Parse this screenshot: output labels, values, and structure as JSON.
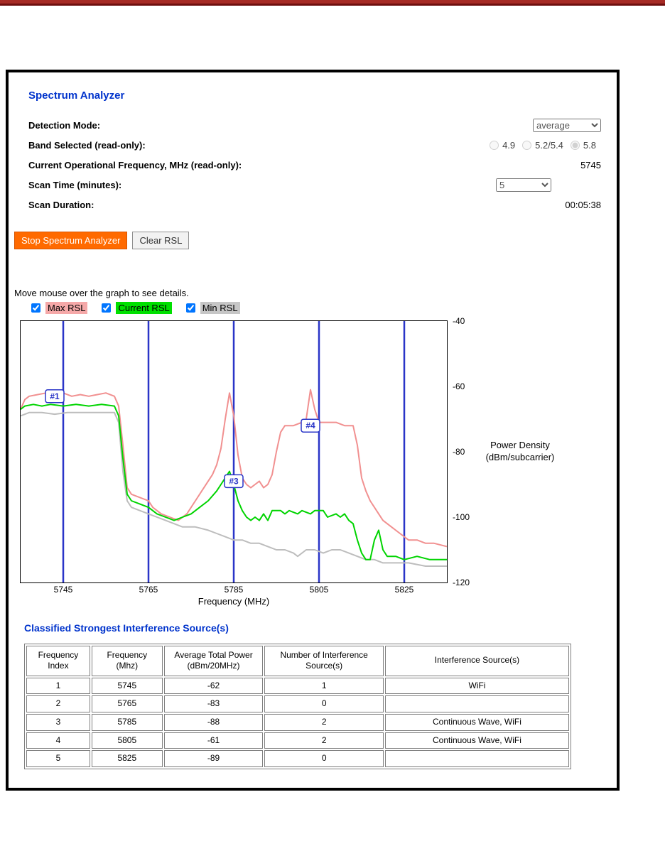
{
  "colors": {
    "top_bar": "#a62b25",
    "heading_blue": "#0033cc",
    "stop_button_orange": "#ff6a00"
  },
  "panel": {
    "title": "Spectrum Analyzer",
    "detection_mode": {
      "label": "Detection Mode:",
      "value": "average"
    },
    "band": {
      "label": "Band Selected (read-only):",
      "options": [
        {
          "label": "4.9",
          "selected": false
        },
        {
          "label": "5.2/5.4",
          "selected": false
        },
        {
          "label": "5.8",
          "selected": true
        }
      ]
    },
    "frequency": {
      "label": "Current Operational Frequency, MHz (read-only):",
      "value": "5745"
    },
    "scan_time": {
      "label": "Scan Time (minutes):",
      "value": "5"
    },
    "scan_duration": {
      "label": "Scan Duration:",
      "value": "00:05:38"
    },
    "buttons": {
      "stop": "Stop Spectrum Analyzer",
      "clear": "Clear RSL"
    },
    "hint": "Move mouse over the graph to see details.",
    "legend": [
      {
        "label": "Max RSL",
        "checked": true,
        "color": "#f5a8a8"
      },
      {
        "label": "Current RSL",
        "checked": true,
        "color": "#00e000"
      },
      {
        "label": "Min RSL",
        "checked": true,
        "color": "#c6c6c6"
      }
    ]
  },
  "chart_data": {
    "type": "line",
    "title": "",
    "xlabel": "Frequency (MHz)",
    "ylabel": "Power Density (dBm/subcarrier)",
    "xlim": [
      5735,
      5835
    ],
    "ylim": [
      -120,
      -40
    ],
    "x_ticks": [
      5745,
      5765,
      5785,
      5805,
      5825
    ],
    "y_ticks": [
      -40,
      -60,
      -80,
      -100,
      -120
    ],
    "grid": false,
    "legend_position": "top-left-above-chart",
    "marker_lines_x": [
      5745,
      5765,
      5785,
      5805,
      5825
    ],
    "marker_color": "#2a35c8",
    "draw_order": [
      2,
      0,
      1
    ],
    "annotations": [
      {
        "label": "#1",
        "x": 5743,
        "y": -63
      },
      {
        "label": "#3",
        "x": 5785,
        "y": -89
      },
      {
        "label": "#4",
        "x": 5803,
        "y": -72
      }
    ],
    "series": [
      {
        "name": "Max RSL",
        "color": "#f19090",
        "points": [
          [
            5735,
            -67
          ],
          [
            5736,
            -64
          ],
          [
            5737,
            -63
          ],
          [
            5739,
            -62.5
          ],
          [
            5741,
            -62
          ],
          [
            5743,
            -62.5
          ],
          [
            5745,
            -62
          ],
          [
            5747,
            -63
          ],
          [
            5749,
            -62.5
          ],
          [
            5751,
            -63
          ],
          [
            5753,
            -62.5
          ],
          [
            5755,
            -62
          ],
          [
            5757,
            -63
          ],
          [
            5758,
            -66
          ],
          [
            5759,
            -78
          ],
          [
            5760,
            -91
          ],
          [
            5761,
            -93
          ],
          [
            5763,
            -94
          ],
          [
            5765,
            -95
          ],
          [
            5766,
            -97
          ],
          [
            5768,
            -99
          ],
          [
            5770,
            -100
          ],
          [
            5772,
            -101
          ],
          [
            5774,
            -99
          ],
          [
            5776,
            -95
          ],
          [
            5778,
            -91
          ],
          [
            5780,
            -87
          ],
          [
            5781,
            -84
          ],
          [
            5782,
            -79
          ],
          [
            5783,
            -70
          ],
          [
            5784,
            -62
          ],
          [
            5785,
            -69
          ],
          [
            5786,
            -81
          ],
          [
            5787,
            -88
          ],
          [
            5788,
            -90
          ],
          [
            5789,
            -91
          ],
          [
            5790,
            -90
          ],
          [
            5791,
            -89
          ],
          [
            5792,
            -91
          ],
          [
            5793,
            -90
          ],
          [
            5794,
            -87
          ],
          [
            5795,
            -80
          ],
          [
            5796,
            -74
          ],
          [
            5797,
            -72
          ],
          [
            5799,
            -72
          ],
          [
            5801,
            -71
          ],
          [
            5802,
            -70
          ],
          [
            5803,
            -61
          ],
          [
            5804,
            -67
          ],
          [
            5805,
            -71
          ],
          [
            5807,
            -71
          ],
          [
            5809,
            -71
          ],
          [
            5811,
            -72
          ],
          [
            5813,
            -72
          ],
          [
            5814,
            -78
          ],
          [
            5815,
            -88
          ],
          [
            5816,
            -92
          ],
          [
            5817,
            -95
          ],
          [
            5818,
            -97
          ],
          [
            5819,
            -99
          ],
          [
            5820,
            -101
          ],
          [
            5822,
            -103
          ],
          [
            5824,
            -105
          ],
          [
            5826,
            -107
          ],
          [
            5828,
            -107
          ],
          [
            5830,
            -108
          ],
          [
            5832,
            -108
          ],
          [
            5835,
            -109
          ]
        ]
      },
      {
        "name": "Current RSL",
        "color": "#00d400",
        "points": [
          [
            5735,
            -67
          ],
          [
            5736,
            -66
          ],
          [
            5738,
            -65.5
          ],
          [
            5740,
            -66
          ],
          [
            5742,
            -65.5
          ],
          [
            5745,
            -66
          ],
          [
            5748,
            -65.5
          ],
          [
            5751,
            -66
          ],
          [
            5754,
            -65.5
          ],
          [
            5757,
            -66
          ],
          [
            5758,
            -69
          ],
          [
            5759,
            -82
          ],
          [
            5760,
            -93
          ],
          [
            5761,
            -95
          ],
          [
            5763,
            -96
          ],
          [
            5765,
            -97
          ],
          [
            5767,
            -99
          ],
          [
            5769,
            -100
          ],
          [
            5771,
            -101
          ],
          [
            5773,
            -100
          ],
          [
            5775,
            -99
          ],
          [
            5777,
            -97
          ],
          [
            5779,
            -95
          ],
          [
            5781,
            -92
          ],
          [
            5782,
            -90
          ],
          [
            5783,
            -88
          ],
          [
            5784,
            -86
          ],
          [
            5785,
            -90
          ],
          [
            5786,
            -95
          ],
          [
            5787,
            -98
          ],
          [
            5788,
            -100
          ],
          [
            5789,
            -101
          ],
          [
            5790,
            -100
          ],
          [
            5791,
            -101
          ],
          [
            5792,
            -99
          ],
          [
            5793,
            -101
          ],
          [
            5794,
            -98
          ],
          [
            5796,
            -98
          ],
          [
            5797,
            -99
          ],
          [
            5798,
            -98
          ],
          [
            5800,
            -99
          ],
          [
            5801,
            -98
          ],
          [
            5803,
            -99
          ],
          [
            5804,
            -98
          ],
          [
            5806,
            -98
          ],
          [
            5807,
            -100
          ],
          [
            5809,
            -99
          ],
          [
            5810,
            -100
          ],
          [
            5811,
            -99
          ],
          [
            5812,
            -101
          ],
          [
            5813,
            -102
          ],
          [
            5814,
            -107
          ],
          [
            5815,
            -111
          ],
          [
            5816,
            -113
          ],
          [
            5817,
            -113
          ],
          [
            5818,
            -107
          ],
          [
            5819,
            -104
          ],
          [
            5820,
            -110
          ],
          [
            5821,
            -112
          ],
          [
            5823,
            -112
          ],
          [
            5825,
            -113
          ],
          [
            5828,
            -112
          ],
          [
            5831,
            -113
          ],
          [
            5835,
            -113
          ]
        ]
      },
      {
        "name": "Min RSL",
        "color": "#bdbdbd",
        "points": [
          [
            5735,
            -69
          ],
          [
            5737,
            -68
          ],
          [
            5740,
            -68
          ],
          [
            5743,
            -68.5
          ],
          [
            5746,
            -68
          ],
          [
            5750,
            -68
          ],
          [
            5754,
            -68
          ],
          [
            5757,
            -68
          ],
          [
            5758,
            -71
          ],
          [
            5759,
            -86
          ],
          [
            5760,
            -95
          ],
          [
            5761,
            -97
          ],
          [
            5763,
            -98
          ],
          [
            5765,
            -99
          ],
          [
            5767,
            -100
          ],
          [
            5769,
            -101
          ],
          [
            5771,
            -102
          ],
          [
            5773,
            -103
          ],
          [
            5776,
            -103
          ],
          [
            5779,
            -104
          ],
          [
            5781,
            -105
          ],
          [
            5783,
            -106
          ],
          [
            5785,
            -107
          ],
          [
            5787,
            -107
          ],
          [
            5789,
            -108
          ],
          [
            5791,
            -108
          ],
          [
            5793,
            -109
          ],
          [
            5795,
            -110
          ],
          [
            5797,
            -110
          ],
          [
            5799,
            -111
          ],
          [
            5800,
            -112
          ],
          [
            5802,
            -110
          ],
          [
            5804,
            -110
          ],
          [
            5806,
            -111
          ],
          [
            5808,
            -110
          ],
          [
            5810,
            -110
          ],
          [
            5812,
            -111
          ],
          [
            5814,
            -112
          ],
          [
            5816,
            -113
          ],
          [
            5818,
            -113
          ],
          [
            5820,
            -114
          ],
          [
            5823,
            -114
          ],
          [
            5826,
            -114
          ],
          [
            5830,
            -115
          ],
          [
            5835,
            -115
          ]
        ]
      }
    ]
  },
  "table": {
    "title": "Classified Strongest Interference Source(s)",
    "headers": [
      "Frequency Index",
      "Frequency (Mhz)",
      "Average Total Power (dBm/20MHz)",
      "Number of Interference Source(s)",
      "Interference Source(s)"
    ],
    "rows": [
      [
        "1",
        "5745",
        "-62",
        "1",
        "WiFi"
      ],
      [
        "2",
        "5765",
        "-83",
        "0",
        ""
      ],
      [
        "3",
        "5785",
        "-88",
        "2",
        "Continuous Wave, WiFi"
      ],
      [
        "4",
        "5805",
        "-61",
        "2",
        "Continuous Wave, WiFi"
      ],
      [
        "5",
        "5825",
        "-89",
        "0",
        ""
      ]
    ]
  }
}
